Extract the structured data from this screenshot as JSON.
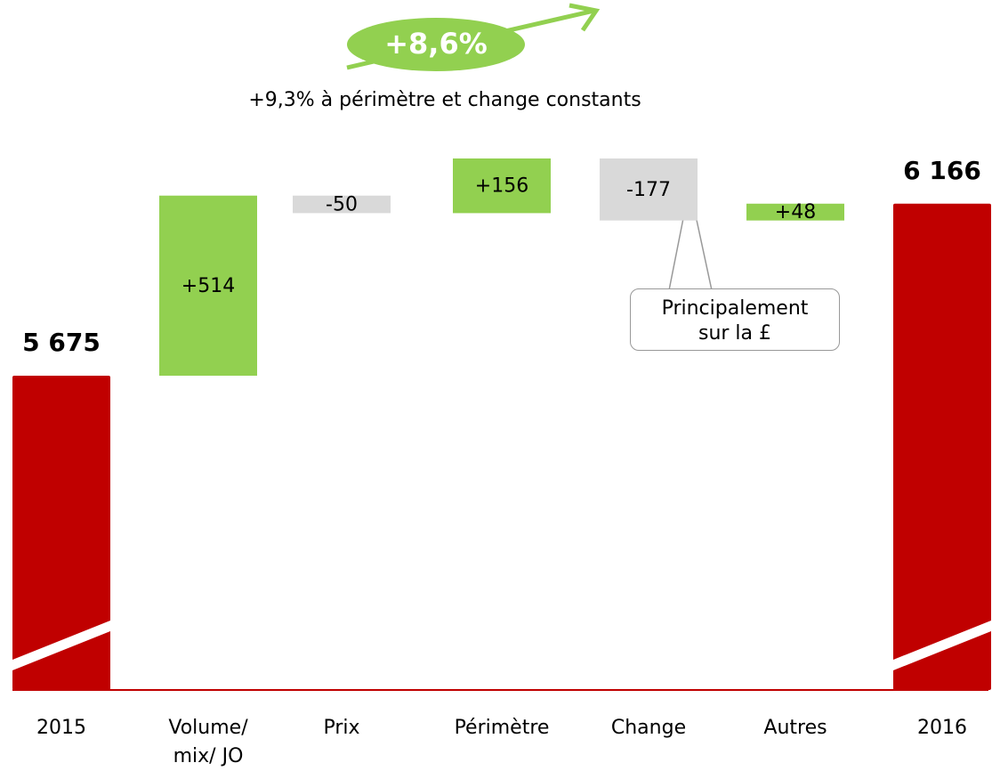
{
  "chart_data": {
    "type": "waterfall",
    "growth_label": "+8,6%",
    "subtitle": "+9,3% à périmètre et change constants",
    "callout": "Principalement sur la £",
    "categories": [
      "2015",
      "Volume/ mix/ JO",
      "Prix",
      "Périmètre",
      "Change",
      "Autres",
      "2016"
    ],
    "values": [
      5675,
      514,
      -50,
      156,
      -177,
      48,
      6166
    ],
    "value_labels": [
      "5 675",
      "+514",
      "-50",
      "+156",
      "-177",
      "+48",
      "6 166"
    ],
    "is_total": [
      true,
      false,
      false,
      false,
      false,
      false,
      true
    ],
    "colors": {
      "total": "#c00000",
      "increase": "#92d050",
      "decrease": "#d9d9d9"
    }
  }
}
